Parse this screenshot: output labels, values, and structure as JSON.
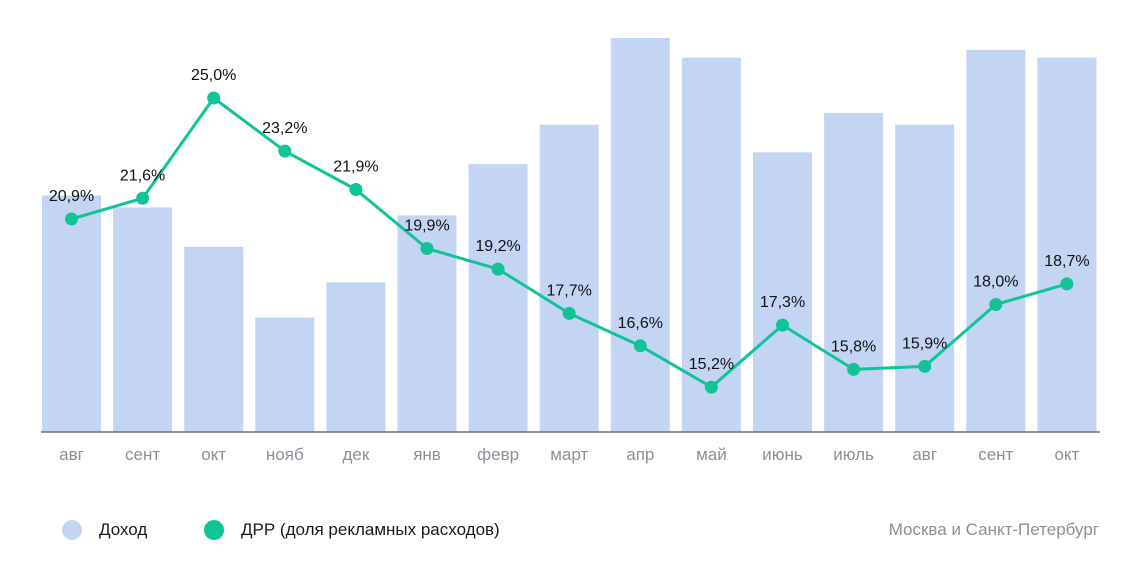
{
  "chart_data": {
    "type": "bar",
    "categories": [
      "авг",
      "сент",
      "окт",
      "нояб",
      "дек",
      "янв",
      "февр",
      "март",
      "апр",
      "май",
      "июнь",
      "июль",
      "авг",
      "сент",
      "окт"
    ],
    "series": [
      {
        "name": "Доход",
        "type": "bar",
        "color": "#c4d5f4",
        "values": [
          60,
          57,
          47,
          29,
          38,
          55,
          68,
          78,
          100,
          95,
          71,
          81,
          78,
          97,
          95
        ]
      },
      {
        "name": "ДРР (доля рекламных расходов)",
        "type": "line",
        "color": "#10c497",
        "values": [
          20.9,
          21.6,
          25.0,
          23.2,
          21.9,
          19.9,
          19.2,
          17.7,
          16.6,
          15.2,
          17.3,
          15.8,
          15.9,
          18.0,
          18.7
        ],
        "labels": [
          "20,9%",
          "21,6%",
          "25,0%",
          "23,2%",
          "21,9%",
          "19,9%",
          "19,2%",
          "17,7%",
          "16,6%",
          "15,2%",
          "17,3%",
          "15,8%",
          "15,9%",
          "18,0%",
          "18,7%"
        ]
      }
    ],
    "legend_position": "bottom-left",
    "grid": false,
    "baseline_color": "#6b7280"
  },
  "legend": {
    "income_label": "Доход",
    "drr_label": "ДРР (доля рекламных расходов)"
  },
  "region_note": "Москва и Санкт-Петербург"
}
